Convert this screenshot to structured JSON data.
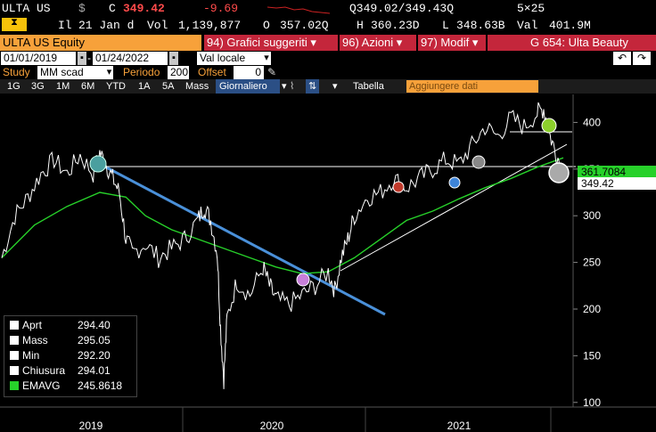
{
  "quote": {
    "ticker": "ULTA US",
    "currency": "$",
    "close_label": "C",
    "close": "349.42",
    "change": "-9.69",
    "bid_ask": "Q349.02/349.43Q",
    "size": "5×25",
    "il_label": "Il",
    "date": "21 Jan d",
    "vol_label": "Vol",
    "volume": "1,139,877",
    "open_label": "O",
    "open": "357.02Q",
    "high_label": "H",
    "high": "360.23D",
    "low_label": "L",
    "low": "348.63B",
    "val_label": "Val",
    "value": "401.9M"
  },
  "security": {
    "name": "ULTA US Equity",
    "menu_suggested": "94) Grafici suggeriti",
    "menu_actions": "96) Azioni",
    "menu_modify": "97) Modif",
    "group": "G 654: Ulta Beauty"
  },
  "range": {
    "start": "01/01/2019",
    "end": "01/24/2022",
    "currency_mode": "Val locale"
  },
  "study": {
    "study_label": "Study",
    "study_value": "MM scad",
    "period_label": "Periodo",
    "period_value": "200",
    "offset_label": "Offset",
    "offset_value": "0"
  },
  "periods": {
    "items": [
      "1G",
      "3G",
      "1M",
      "6M",
      "YTD",
      "1A",
      "5A",
      "Mass"
    ],
    "selected": "Giornaliero",
    "table_label": "Tabella",
    "add_data_placeholder": "Aggiungere dati"
  },
  "chart_data": {
    "type": "line",
    "y_ticks": [
      100,
      150,
      200,
      250,
      300,
      350,
      400
    ],
    "ylim": [
      95,
      430
    ],
    "x_labels": [
      "2019",
      "2020",
      "2021"
    ],
    "last_price": "349.42",
    "ema_value": "361.7084",
    "legend": [
      {
        "name": "Aprt",
        "value": "294.40",
        "color": "#ffffff"
      },
      {
        "name": "Mass",
        "value": "295.05",
        "color": "#ffffff"
      },
      {
        "name": "Min",
        "value": "292.20",
        "color": "#ffffff"
      },
      {
        "name": "Chiusura",
        "value": "294.01",
        "color": "#ffffff"
      },
      {
        "name": "EMAVG",
        "value": "245.8618",
        "color": "#27d12a"
      }
    ],
    "price_series": [
      [
        0.0,
        255
      ],
      [
        0.02,
        300
      ],
      [
        0.04,
        320
      ],
      [
        0.06,
        345
      ],
      [
        0.08,
        360
      ],
      [
        0.1,
        345
      ],
      [
        0.12,
        365
      ],
      [
        0.14,
        345
      ],
      [
        0.15,
        368
      ],
      [
        0.16,
        355
      ],
      [
        0.17,
        340
      ],
      [
        0.18,
        325
      ],
      [
        0.19,
        275
      ],
      [
        0.2,
        260
      ],
      [
        0.22,
        270
      ],
      [
        0.24,
        255
      ],
      [
        0.26,
        265
      ],
      [
        0.28,
        275
      ],
      [
        0.3,
        295
      ],
      [
        0.31,
        310
      ],
      [
        0.32,
        295
      ],
      [
        0.33,
        260
      ],
      [
        0.335,
        180
      ],
      [
        0.34,
        125
      ],
      [
        0.345,
        190
      ],
      [
        0.36,
        230
      ],
      [
        0.38,
        215
      ],
      [
        0.4,
        245
      ],
      [
        0.41,
        225
      ],
      [
        0.42,
        210
      ],
      [
        0.44,
        205
      ],
      [
        0.46,
        215
      ],
      [
        0.48,
        225
      ],
      [
        0.5,
        240
      ],
      [
        0.51,
        220
      ],
      [
        0.52,
        255
      ],
      [
        0.53,
        275
      ],
      [
        0.54,
        300
      ],
      [
        0.56,
        320
      ],
      [
        0.58,
        325
      ],
      [
        0.6,
        340
      ],
      [
        0.62,
        330
      ],
      [
        0.64,
        340
      ],
      [
        0.66,
        350
      ],
      [
        0.68,
        360
      ],
      [
        0.7,
        355
      ],
      [
        0.72,
        375
      ],
      [
        0.74,
        395
      ],
      [
        0.76,
        385
      ],
      [
        0.78,
        405
      ],
      [
        0.8,
        395
      ],
      [
        0.82,
        410
      ],
      [
        0.83,
        415
      ],
      [
        0.84,
        385
      ],
      [
        0.85,
        365
      ],
      [
        0.86,
        349
      ]
    ],
    "ema_series": [
      [
        0.0,
        255
      ],
      [
        0.05,
        290
      ],
      [
        0.1,
        310
      ],
      [
        0.15,
        325
      ],
      [
        0.19,
        320
      ],
      [
        0.22,
        300
      ],
      [
        0.26,
        285
      ],
      [
        0.3,
        275
      ],
      [
        0.34,
        265
      ],
      [
        0.38,
        255
      ],
      [
        0.42,
        245
      ],
      [
        0.46,
        238
      ],
      [
        0.5,
        240
      ],
      [
        0.54,
        255
      ],
      [
        0.58,
        275
      ],
      [
        0.62,
        295
      ],
      [
        0.66,
        305
      ],
      [
        0.7,
        318
      ],
      [
        0.74,
        330
      ],
      [
        0.78,
        340
      ],
      [
        0.82,
        352
      ],
      [
        0.86,
        362
      ]
    ]
  },
  "colors": {
    "accent_orange": "#f7a13a",
    "menu_red": "#c4263b",
    "trend_blue": "#4a90d9",
    "ema_green": "#27d12a"
  }
}
